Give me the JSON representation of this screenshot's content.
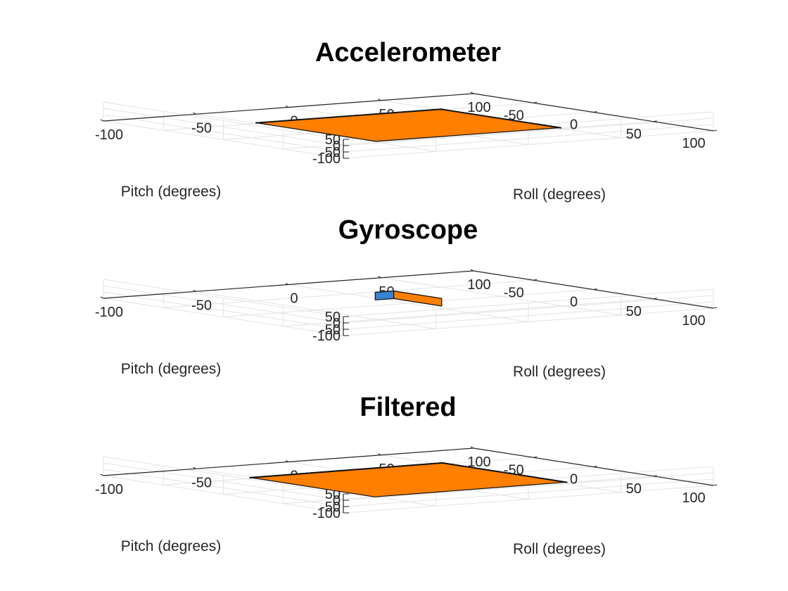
{
  "chart_data": [
    {
      "type": "3d-surface",
      "title": "Accelerometer",
      "xlabel": "Roll (degrees)",
      "ylabel": "Pitch (degrees)",
      "xlim": [
        -100,
        100
      ],
      "ylim": [
        -100,
        100
      ],
      "zlim": [
        -100,
        50
      ],
      "xticks": [
        "100",
        "50",
        "0",
        "-50",
        "-100"
      ],
      "yticks": [
        "-50",
        "0",
        "50",
        "100"
      ],
      "zticks": [
        "50",
        "0",
        "-50",
        "-100"
      ],
      "grid": true,
      "box": {
        "length_x": 50,
        "width_y": 50,
        "height_z": 2,
        "roll": 0,
        "pitch": 0
      },
      "face_colors": {
        "front": "#FF7F00",
        "side": "#3A83D0",
        "top": "#FF7F00"
      }
    },
    {
      "type": "3d-surface",
      "title": "Gyroscope",
      "xlabel": "Roll (degrees)",
      "ylabel": "Pitch (degrees)",
      "xlim": [
        -100,
        100
      ],
      "ylim": [
        -100,
        100
      ],
      "zlim": [
        -100,
        50
      ],
      "xticks": [
        "100",
        "50",
        "0",
        "-50",
        "-100"
      ],
      "yticks": [
        "-50",
        "0",
        "50",
        "100"
      ],
      "zticks": [
        "50",
        "0",
        "-50",
        "-100"
      ],
      "grid": true,
      "box": {
        "length_x": 5,
        "width_y": 20,
        "height_z": 30,
        "roll": 0,
        "pitch": 0
      },
      "face_colors": {
        "front": "#FF7F00",
        "side": "#3A83D0",
        "top": "#1A7FE8"
      }
    },
    {
      "type": "3d-surface",
      "title": "Filtered",
      "xlabel": "Roll (degrees)",
      "ylabel": "Pitch (degrees)",
      "xlim": [
        -100,
        100
      ],
      "ylim": [
        -100,
        100
      ],
      "zlim": [
        -100,
        50
      ],
      "xticks": [
        "100",
        "50",
        "0",
        "-50",
        "-100"
      ],
      "yticks": [
        "-50",
        "0",
        "50",
        "100"
      ],
      "zticks": [
        "50",
        "0",
        "-50",
        "-100"
      ],
      "grid": true,
      "box": {
        "length_x": 52,
        "width_y": 52,
        "height_z": 2,
        "roll": 2,
        "pitch": 0
      },
      "face_colors": {
        "front": "#FF7F00",
        "side": "#3A83D0",
        "top": "#FF7F00"
      }
    }
  ]
}
